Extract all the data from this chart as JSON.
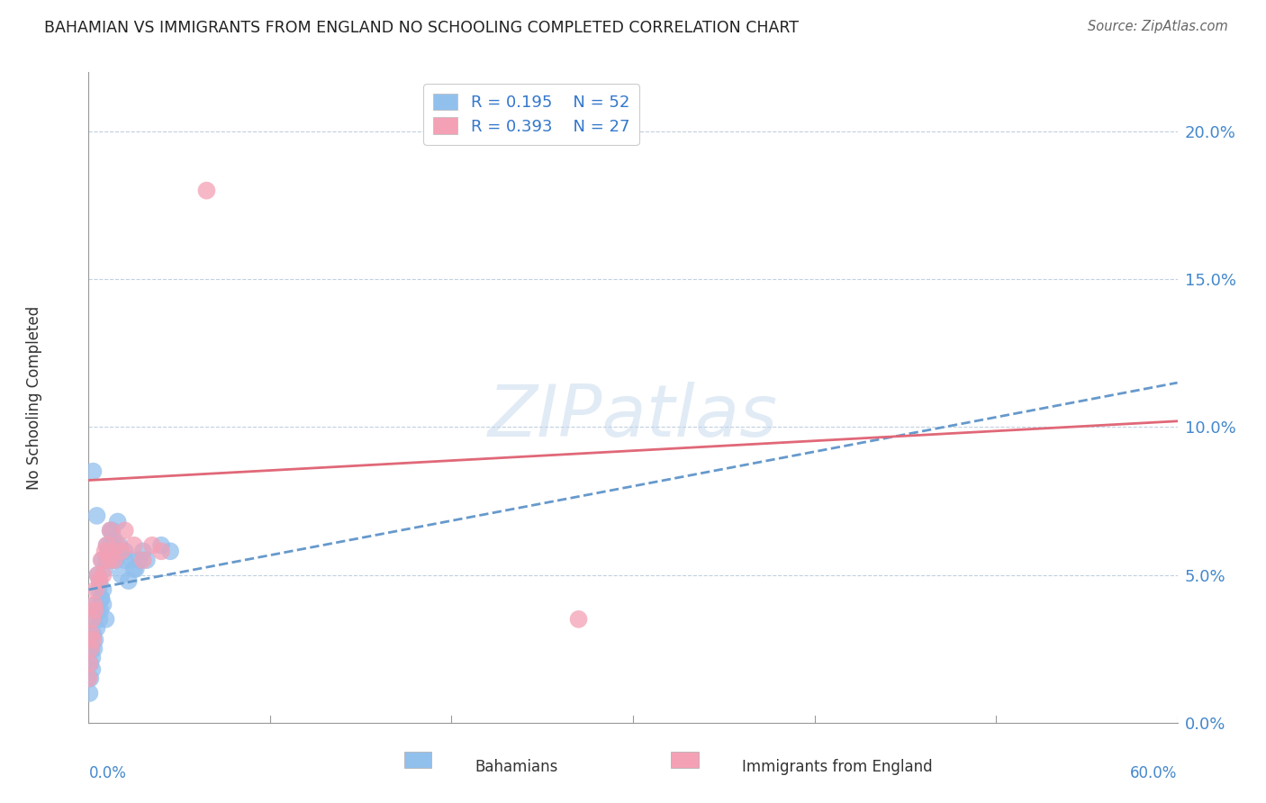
{
  "title": "BAHAMIAN VS IMMIGRANTS FROM ENGLAND NO SCHOOLING COMPLETED CORRELATION CHART",
  "source": "Source: ZipAtlas.com",
  "ylabel_label": "No Schooling Completed",
  "ytick_values": [
    0.0,
    5.0,
    10.0,
    15.0,
    20.0
  ],
  "xmin": 0.0,
  "xmax": 60.0,
  "ymin": 0.0,
  "ymax": 22.0,
  "legend_R1": "R = 0.195",
  "legend_N1": "N = 52",
  "legend_R2": "R = 0.393",
  "legend_N2": "N = 27",
  "color_blue": "#92c0ed",
  "color_pink": "#f4a0b5",
  "trendline_blue_color": "#6699cc",
  "trendline_pink_color": "#e06878",
  "watermark": "ZIPatlas",
  "blue_x": [
    0.0,
    0.1,
    0.15,
    0.2,
    0.25,
    0.3,
    0.35,
    0.4,
    0.45,
    0.5,
    0.55,
    0.6,
    0.65,
    0.7,
    0.75,
    0.8,
    0.9,
    1.0,
    1.1,
    1.2,
    1.3,
    1.4,
    1.5,
    1.6,
    1.8,
    2.0,
    2.2,
    2.5,
    2.8,
    3.0,
    0.05,
    0.1,
    0.2,
    0.3,
    0.5,
    0.6,
    0.8,
    1.0,
    1.2,
    1.5,
    1.7,
    2.0,
    2.3,
    2.6,
    3.2,
    4.0,
    4.5,
    0.25,
    0.45,
    0.7,
    0.95,
    1.3
  ],
  "blue_y": [
    1.5,
    2.0,
    2.5,
    1.8,
    3.0,
    3.5,
    2.8,
    4.0,
    3.2,
    5.0,
    4.5,
    4.8,
    3.8,
    4.2,
    5.5,
    4.0,
    5.2,
    6.0,
    5.8,
    6.5,
    5.5,
    6.2,
    5.8,
    6.8,
    5.0,
    5.5,
    4.8,
    5.2,
    5.5,
    5.8,
    1.0,
    1.5,
    2.2,
    2.5,
    3.8,
    3.5,
    4.5,
    5.5,
    6.0,
    5.5,
    6.0,
    5.8,
    5.5,
    5.2,
    5.5,
    6.0,
    5.8,
    8.5,
    7.0,
    4.2,
    3.5,
    6.5
  ],
  "pink_x": [
    0.0,
    0.05,
    0.1,
    0.15,
    0.2,
    0.25,
    0.3,
    0.4,
    0.5,
    0.6,
    0.7,
    0.8,
    0.9,
    1.0,
    1.2,
    1.4,
    1.6,
    1.8,
    2.0,
    2.5,
    3.0,
    3.5,
    4.0,
    27.0,
    6.5,
    1.1,
    0.35
  ],
  "pink_y": [
    1.5,
    2.0,
    2.5,
    3.0,
    3.5,
    2.8,
    4.0,
    4.5,
    5.0,
    4.8,
    5.5,
    5.0,
    5.8,
    6.0,
    6.5,
    5.5,
    6.0,
    5.8,
    6.5,
    6.0,
    5.5,
    6.0,
    5.8,
    3.5,
    18.0,
    5.5,
    3.8
  ],
  "trendline_blue_x0": 0.0,
  "trendline_blue_x1": 60.0,
  "trendline_blue_y0": 4.5,
  "trendline_blue_y1": 11.5,
  "trendline_pink_x0": 0.0,
  "trendline_pink_x1": 60.0,
  "trendline_pink_y0": 8.2,
  "trendline_pink_y1": 10.2
}
